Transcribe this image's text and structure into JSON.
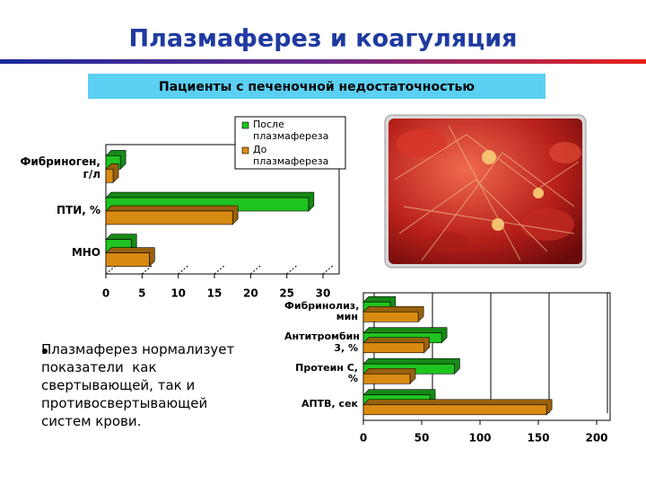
{
  "title": "Плазмаферез и коагуляция",
  "subtitle": "Пациенты с печеночной недостаточностью",
  "bullet": [
    "Плазмаферез нормализует",
    "показатели  как",
    "свертывающей, так и",
    "противосвертывающей",
    "систем крови."
  ],
  "chart_data": [
    {
      "type": "bar",
      "orientation": "horizontal",
      "categories": [
        "Фибриноген, г/л",
        "ПТИ, %",
        "МНО"
      ],
      "series": [
        {
          "name": "После плазмафереза",
          "color": "#1fc41f",
          "values": [
            2,
            28,
            3.5
          ]
        },
        {
          "name": "До плазмафереза",
          "color": "#d98a12",
          "values": [
            1,
            17.5,
            6
          ]
        }
      ],
      "xlim": [
        0,
        30
      ],
      "xticks": [
        0,
        5,
        10,
        15,
        20,
        25,
        30
      ],
      "grid": false,
      "legend": "top-right"
    },
    {
      "type": "bar",
      "orientation": "horizontal",
      "categories": [
        "Фибринолиз, мин",
        "Антитромбин 3, %",
        "Протеин С, %",
        "АПТВ, сек"
      ],
      "series": [
        {
          "name": "После плазмафереза",
          "color": "#1fc41f",
          "values": [
            23,
            67,
            78,
            57
          ]
        },
        {
          "name": "До плазмафереза",
          "color": "#d98a12",
          "values": [
            47,
            52,
            40,
            157
          ]
        }
      ],
      "xlim": [
        0,
        200
      ],
      "xticks": [
        0,
        50,
        100,
        150,
        200
      ],
      "grid": true
    }
  ]
}
